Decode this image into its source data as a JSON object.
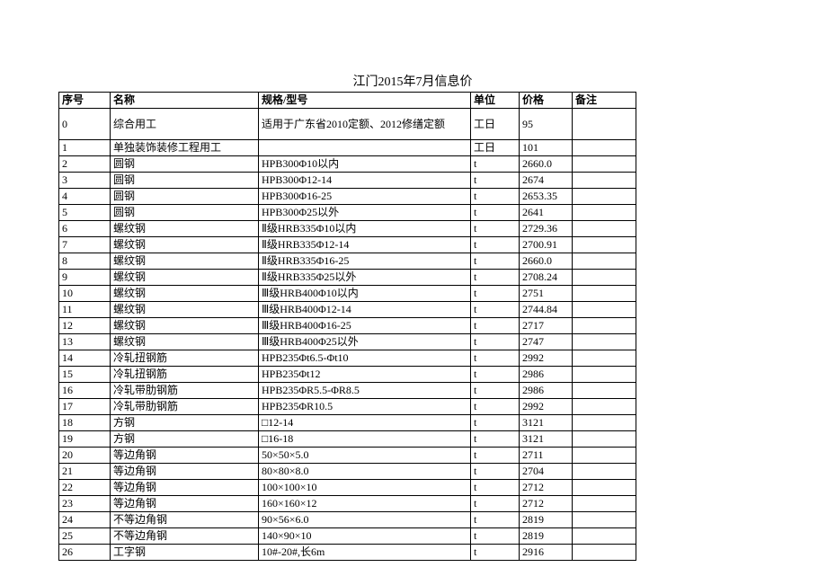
{
  "title": "江门2015年7月信息价",
  "columns": [
    "序号",
    "名称",
    "规格/型号",
    "单位",
    "价格",
    "备注"
  ],
  "rows": [
    {
      "seq": "0",
      "name": "综合用工",
      "spec": "适用于广东省2010定额、2012修缮定额",
      "unit": "工日",
      "price": "95",
      "remark": "",
      "tall": true
    },
    {
      "seq": "1",
      "name": "单独装饰装修工程用工",
      "spec": "",
      "unit": "工日",
      "price": "101",
      "remark": ""
    },
    {
      "seq": "2",
      "name": "圆钢",
      "spec": "HPB300Φ10以内",
      "unit": "t",
      "price": "2660.0",
      "remark": ""
    },
    {
      "seq": "3",
      "name": "圆钢",
      "spec": "HPB300Φ12-14",
      "unit": "t",
      "price": "2674",
      "remark": ""
    },
    {
      "seq": "4",
      "name": "圆钢",
      "spec": "HPB300Φ16-25",
      "unit": "t",
      "price": "2653.35",
      "remark": ""
    },
    {
      "seq": "5",
      "name": "圆钢",
      "spec": "HPB300Φ25以外",
      "unit": "t",
      "price": "2641",
      "remark": ""
    },
    {
      "seq": "6",
      "name": "螺纹钢",
      "spec": "Ⅱ级HRB335Φ10以内",
      "unit": "t",
      "price": "2729.36",
      "remark": ""
    },
    {
      "seq": "7",
      "name": "螺纹钢",
      "spec": "Ⅱ级HRB335Φ12-14",
      "unit": "t",
      "price": "2700.91",
      "remark": ""
    },
    {
      "seq": "8",
      "name": "螺纹钢",
      "spec": "Ⅱ级HRB335Φ16-25",
      "unit": "t",
      "price": "2660.0",
      "remark": ""
    },
    {
      "seq": "9",
      "name": "螺纹钢",
      "spec": "Ⅱ级HRB335Φ25以外",
      "unit": "t",
      "price": "2708.24",
      "remark": ""
    },
    {
      "seq": "10",
      "name": "螺纹钢",
      "spec": "Ⅲ级HRB400Φ10以内",
      "unit": "t",
      "price": "2751",
      "remark": ""
    },
    {
      "seq": "11",
      "name": "螺纹钢",
      "spec": "Ⅲ级HRB400Φ12-14",
      "unit": "t",
      "price": "2744.84",
      "remark": ""
    },
    {
      "seq": "12",
      "name": "螺纹钢",
      "spec": "Ⅲ级HRB400Φ16-25",
      "unit": "t",
      "price": "2717",
      "remark": ""
    },
    {
      "seq": "13",
      "name": "螺纹钢",
      "spec": "Ⅲ级HRB400Φ25以外",
      "unit": "t",
      "price": "2747",
      "remark": ""
    },
    {
      "seq": "14",
      "name": "冷轧扭钢筋",
      "spec": "HPB235Φt6.5-Φt10",
      "unit": "t",
      "price": "2992",
      "remark": ""
    },
    {
      "seq": "15",
      "name": "冷轧扭钢筋",
      "spec": "HPB235Φt12",
      "unit": "t",
      "price": "2986",
      "remark": ""
    },
    {
      "seq": "16",
      "name": "冷轧带肋钢筋",
      "spec": "HPB235ΦR5.5-ΦR8.5",
      "unit": "t",
      "price": "2986",
      "remark": ""
    },
    {
      "seq": "17",
      "name": "冷轧带肋钢筋",
      "spec": "HPB235ΦR10.5",
      "unit": "t",
      "price": "2992",
      "remark": ""
    },
    {
      "seq": "18",
      "name": "方钢",
      "spec": "□12-14",
      "unit": "t",
      "price": "3121",
      "remark": ""
    },
    {
      "seq": "19",
      "name": "方钢",
      "spec": "□16-18",
      "unit": "t",
      "price": "3121",
      "remark": ""
    },
    {
      "seq": "20",
      "name": "等边角钢",
      "spec": "50×50×5.0",
      "unit": "t",
      "price": "2711",
      "remark": ""
    },
    {
      "seq": "21",
      "name": "等边角钢",
      "spec": "80×80×8.0",
      "unit": "t",
      "price": "2704",
      "remark": ""
    },
    {
      "seq": "22",
      "name": "等边角钢",
      "spec": "100×100×10",
      "unit": "t",
      "price": "2712",
      "remark": ""
    },
    {
      "seq": "23",
      "name": "等边角钢",
      "spec": "160×160×12",
      "unit": "t",
      "price": "2712",
      "remark": ""
    },
    {
      "seq": "24",
      "name": "不等边角钢",
      "spec": "90×56×6.0",
      "unit": "t",
      "price": "2819",
      "remark": ""
    },
    {
      "seq": "25",
      "name": "不等边角钢",
      "spec": "140×90×10",
      "unit": "t",
      "price": "2819",
      "remark": ""
    },
    {
      "seq": "26",
      "name": "工字钢",
      "spec": "10#-20#,长6m",
      "unit": "t",
      "price": "2916",
      "remark": ""
    }
  ]
}
